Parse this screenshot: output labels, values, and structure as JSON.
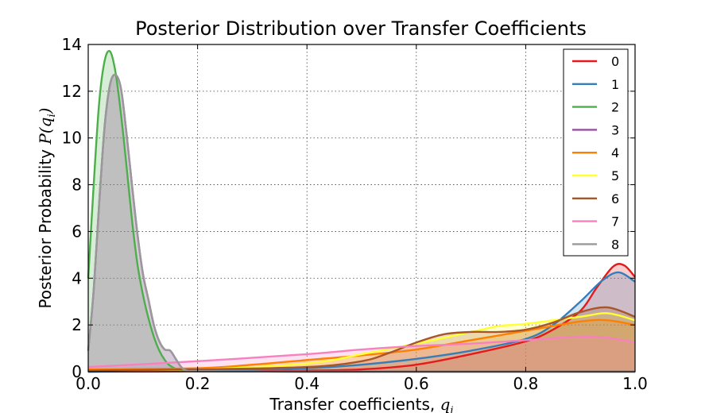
{
  "chart_data": {
    "type": "area",
    "title": "Posterior Distribution over Transfer Coefficients",
    "xlabel_text": "Transfer coefficients, ",
    "xlabel_math": "q",
    "xlabel_sub": "i",
    "ylabel_text": "Posterior Probability ",
    "ylabel_math": "P(q",
    "ylabel_sub": "i",
    "ylabel_close": ")",
    "xlim": [
      0.0,
      1.0
    ],
    "ylim": [
      0,
      14
    ],
    "xticks": [
      "0.0",
      "0.2",
      "0.4",
      "0.6",
      "0.8",
      "1.0"
    ],
    "yticks": [
      "0",
      "2",
      "4",
      "6",
      "8",
      "10",
      "12",
      "14"
    ],
    "grid": true,
    "legend_position": "top-right",
    "series": [
      {
        "name": "0",
        "color": "#e41a1c",
        "x": [
          0.0,
          0.2,
          0.4,
          0.5,
          0.6,
          0.7,
          0.8,
          0.85,
          0.9,
          0.93,
          0.96,
          0.98,
          1.0
        ],
        "y": [
          0.0,
          0.02,
          0.05,
          0.1,
          0.3,
          0.75,
          1.3,
          1.8,
          2.6,
          3.6,
          4.5,
          4.55,
          4.05
        ]
      },
      {
        "name": "1",
        "color": "#377eb8",
        "x": [
          0.0,
          0.2,
          0.4,
          0.5,
          0.6,
          0.7,
          0.8,
          0.85,
          0.9,
          0.94,
          0.97,
          1.0
        ],
        "y": [
          0.0,
          0.05,
          0.15,
          0.3,
          0.55,
          0.9,
          1.4,
          2.0,
          3.0,
          3.9,
          4.25,
          3.85
        ]
      },
      {
        "name": "2",
        "color": "#4daf4a",
        "x": [
          0.0,
          0.01,
          0.02,
          0.03,
          0.04,
          0.05,
          0.06,
          0.07,
          0.08,
          0.09,
          0.1,
          0.11,
          0.12,
          0.13,
          0.14,
          0.15,
          0.17,
          0.2,
          0.4,
          0.6,
          0.8,
          1.0
        ],
        "y": [
          4.0,
          8.0,
          11.5,
          13.3,
          13.7,
          12.8,
          11.0,
          8.8,
          6.5,
          4.6,
          3.3,
          2.3,
          1.5,
          0.9,
          0.5,
          0.25,
          0.05,
          0.02,
          0.0,
          0.0,
          0.0,
          0.0
        ]
      },
      {
        "name": "3",
        "color": "#984ea3",
        "x": [
          0.0,
          0.01,
          0.02,
          0.03,
          0.04,
          0.05,
          0.06,
          0.07,
          0.08,
          0.09,
          0.1,
          0.11,
          0.12,
          0.13,
          0.14,
          0.15,
          0.16,
          0.17,
          0.18,
          0.2,
          0.4,
          0.6,
          0.8,
          1.0
        ],
        "y": [
          0.9,
          3.5,
          7.2,
          10.5,
          12.3,
          12.7,
          12.1,
          10.2,
          8.0,
          5.9,
          4.2,
          3.1,
          2.0,
          1.3,
          0.95,
          0.9,
          0.55,
          0.2,
          0.05,
          0.02,
          0.0,
          0.0,
          0.0,
          0.0
        ]
      },
      {
        "name": "4",
        "color": "#ff7f00",
        "x": [
          0.0,
          0.2,
          0.3,
          0.4,
          0.5,
          0.6,
          0.7,
          0.8,
          0.9,
          0.95,
          1.0
        ],
        "y": [
          0.1,
          0.15,
          0.3,
          0.5,
          0.7,
          0.95,
          1.35,
          1.75,
          2.15,
          2.2,
          2.0
        ]
      },
      {
        "name": "5",
        "color": "#ffff33",
        "x": [
          0.0,
          0.2,
          0.4,
          0.5,
          0.6,
          0.7,
          0.75,
          0.8,
          0.9,
          0.95,
          1.0
        ],
        "y": [
          0.05,
          0.1,
          0.35,
          0.75,
          1.2,
          1.7,
          1.95,
          2.05,
          2.35,
          2.5,
          2.2
        ]
      },
      {
        "name": "6",
        "color": "#a65628",
        "x": [
          0.0,
          0.2,
          0.4,
          0.5,
          0.55,
          0.6,
          0.65,
          0.7,
          0.75,
          0.8,
          0.85,
          0.9,
          0.95,
          1.0
        ],
        "y": [
          0.05,
          0.1,
          0.2,
          0.45,
          0.8,
          1.25,
          1.6,
          1.7,
          1.7,
          1.8,
          2.1,
          2.55,
          2.75,
          2.35
        ]
      },
      {
        "name": "7",
        "color": "#f781bf",
        "x": [
          0.0,
          0.2,
          0.4,
          0.5,
          0.6,
          0.7,
          0.8,
          0.9,
          0.95,
          1.0
        ],
        "y": [
          0.2,
          0.45,
          0.75,
          0.95,
          1.1,
          1.2,
          1.35,
          1.5,
          1.45,
          1.25
        ]
      },
      {
        "name": "8",
        "color": "#999999",
        "x": [
          0.0,
          0.01,
          0.02,
          0.03,
          0.04,
          0.05,
          0.06,
          0.07,
          0.08,
          0.09,
          0.1,
          0.11,
          0.12,
          0.13,
          0.14,
          0.15,
          0.16,
          0.17,
          0.18,
          0.2,
          0.4,
          0.6,
          0.8,
          1.0
        ],
        "y": [
          0.9,
          3.5,
          7.2,
          10.5,
          12.3,
          12.7,
          12.1,
          10.2,
          8.0,
          5.9,
          4.2,
          3.1,
          2.0,
          1.3,
          0.95,
          0.9,
          0.55,
          0.2,
          0.05,
          0.02,
          0.0,
          0.0,
          0.0,
          0.0
        ]
      }
    ]
  }
}
